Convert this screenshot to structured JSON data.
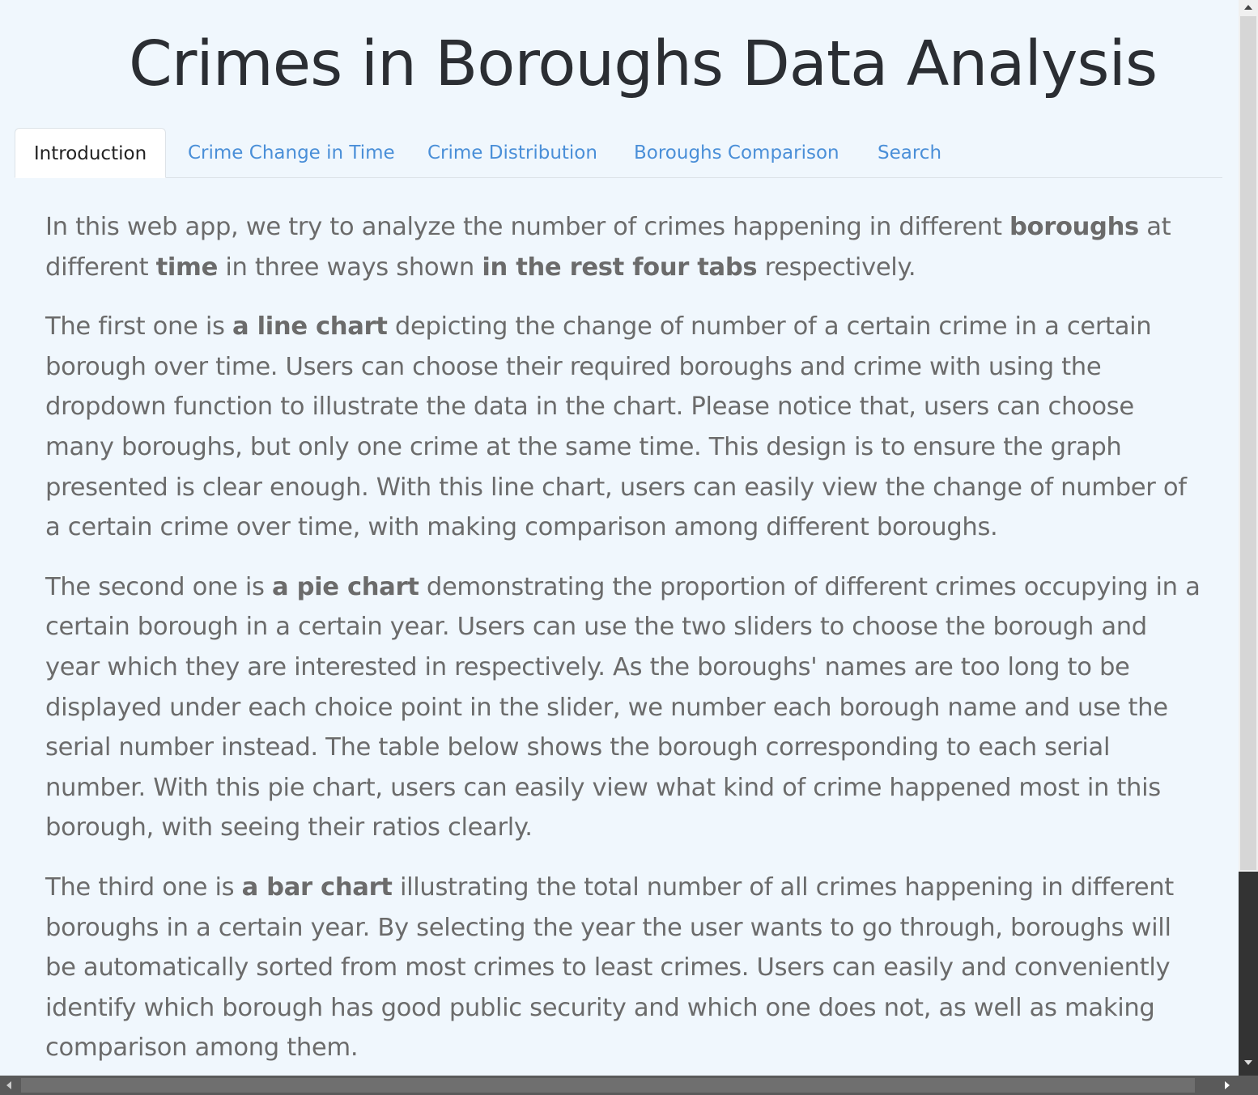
{
  "page": {
    "title": "Crimes in Boroughs Data Analysis"
  },
  "tabs": [
    {
      "label": "Introduction",
      "active": true
    },
    {
      "label": "Crime Change in Time",
      "active": false
    },
    {
      "label": "Crime Distribution",
      "active": false
    },
    {
      "label": "Boroughs Comparison",
      "active": false
    },
    {
      "label": "Search",
      "active": false
    }
  ],
  "intro": {
    "p1": [
      {
        "t": "In this web app, we try to analyze the number of crimes happening in different "
      },
      {
        "b": "boroughs"
      },
      {
        "t": " at different "
      },
      {
        "b": "time"
      },
      {
        "t": " in three ways shown "
      },
      {
        "b": "in the rest four tabs"
      },
      {
        "t": " respectively."
      }
    ],
    "p2": [
      {
        "t": "The first one is "
      },
      {
        "b": "a line chart"
      },
      {
        "t": " depicting the change of number of a certain crime in a certain borough over time. Users can choose their required boroughs and crime with using the dropdown function to illustrate the data in the chart. Please notice that, users can choose many boroughs, but only one crime at the same time. This design is to ensure the graph presented is clear enough. With this line chart, users can easily view the change of number of a certain crime over time, with making comparison among different boroughs."
      }
    ],
    "p3": [
      {
        "t": "The second one is "
      },
      {
        "b": "a pie chart"
      },
      {
        "t": " demonstrating the proportion of different crimes occupying in a certain borough in a certain year. Users can use the two sliders to choose the borough and year which they are interested in respectively. As the boroughs' names are too long to be displayed under each choice point in the slider, we number each borough name and use the serial number instead. The table below shows the borough corresponding to each serial number. With this pie chart, users can easily view what kind of crime happened most in this borough, with seeing their ratios clearly."
      }
    ],
    "p4": [
      {
        "t": "The third one is "
      },
      {
        "b": "a bar chart"
      },
      {
        "t": " illustrating the total number of all crimes happening in different boroughs in a certain year. By selecting the year the user wants to go through, boroughs will be automatically sorted from most crimes to least crimes. Users can easily and conveniently identify which borough has good public security and which one does not, as well as making comparison among them."
      }
    ]
  },
  "colors": {
    "background": "#f0f7fd",
    "tab_link": "#4a8fd8",
    "body_text": "#6b6b6b",
    "title": "#2b2e33"
  },
  "icons": {
    "scroll_up": "scroll-up-arrow-icon",
    "scroll_down": "scroll-down-arrow-icon",
    "scroll_left": "scroll-left-arrow-icon",
    "scroll_right": "scroll-right-arrow-icon"
  }
}
